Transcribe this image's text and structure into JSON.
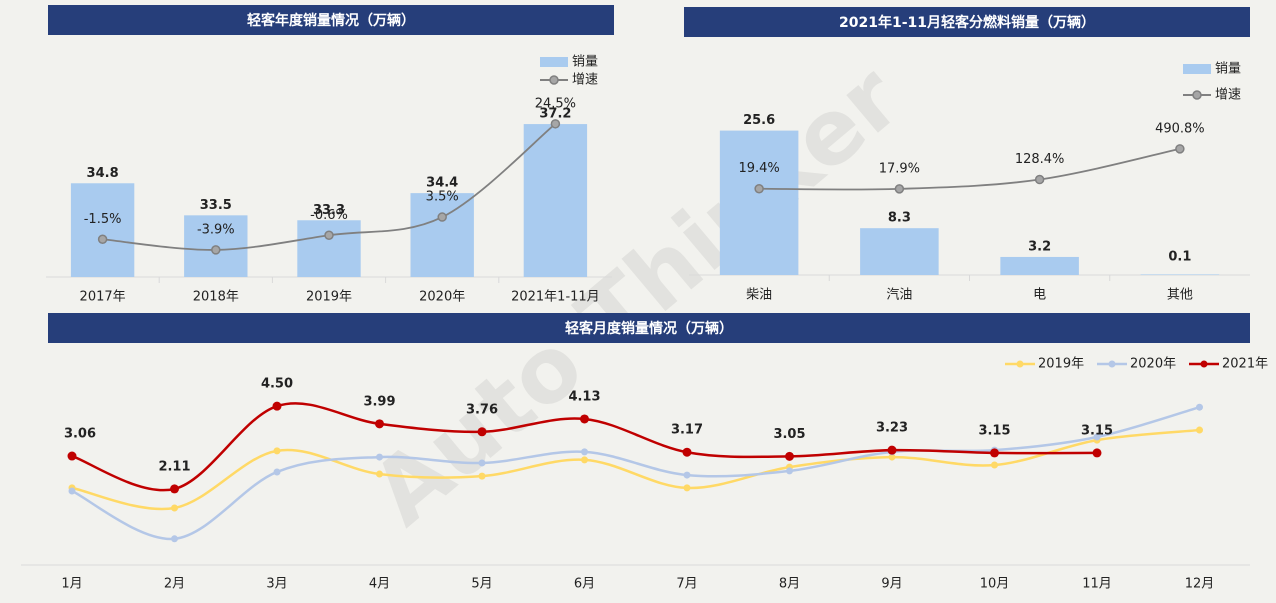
{
  "watermark": "Auto Thinker",
  "chart_data": [
    {
      "type": "bar",
      "title": "轻客年度销量情况（万辆）",
      "categories": [
        "2017年",
        "2018年",
        "2019年",
        "2020年",
        "2021年1-11月"
      ],
      "series": [
        {
          "name": "销量",
          "type": "bar",
          "color": "#a9cbef",
          "values": [
            34.8,
            33.5,
            33.3,
            34.4,
            37.2
          ]
        },
        {
          "name": "增速",
          "type": "line",
          "axis": "y2",
          "color": "#808080",
          "values": [
            -1.5,
            -3.9,
            -0.6,
            3.5,
            24.5
          ],
          "value_labels": [
            "-1.5%",
            "-3.9%",
            "-0.6%",
            "3.5%",
            "24.5%"
          ]
        }
      ],
      "ylim": [
        31,
        40
      ],
      "y2lim": [
        -10,
        40
      ],
      "legend": "upper right"
    },
    {
      "type": "bar",
      "title": "2021年1-11月轻客分燃料销量（万辆）",
      "categories": [
        "柴油",
        "汽油",
        "电",
        "其他"
      ],
      "series": [
        {
          "name": "销量",
          "type": "bar",
          "color": "#a9cbef",
          "values": [
            25.6,
            8.3,
            3.2,
            0.1
          ]
        },
        {
          "name": "增速",
          "type": "line",
          "axis": "y2",
          "color": "#808080",
          "values": [
            19.4,
            17.9,
            128.4,
            490.8
          ],
          "value_labels": [
            "19.4%",
            "17.9%",
            "128.4%",
            "490.8%"
          ]
        }
      ],
      "ylim": [
        0,
        39
      ],
      "y2lim": [
        -1000,
        1600
      ],
      "legend": "upper right"
    },
    {
      "type": "line",
      "title": "轻客月度销量情况（万辆）",
      "categories": [
        "1月",
        "2月",
        "3月",
        "4月",
        "5月",
        "6月",
        "7月",
        "8月",
        "9月",
        "10月",
        "11月",
        "12月"
      ],
      "series": [
        {
          "name": "2019年",
          "color": "#ffd966",
          "values": [
            2.14,
            1.56,
            3.21,
            2.54,
            2.48,
            2.95,
            2.14,
            2.74,
            3.03,
            2.8,
            3.52,
            3.81
          ]
        },
        {
          "name": "2020年",
          "color": "#b4c7e7",
          "values": [
            2.05,
            0.67,
            2.6,
            3.03,
            2.86,
            3.18,
            2.51,
            2.63,
            3.18,
            3.23,
            3.61,
            4.47
          ]
        },
        {
          "name": "2021年",
          "color": "#c00000",
          "values": [
            3.06,
            2.11,
            4.5,
            3.99,
            3.76,
            4.13,
            3.17,
            3.05,
            3.23,
            3.15,
            3.15,
            null
          ],
          "value_labels": [
            "3.06",
            "2.11",
            "4.50",
            "3.99",
            "3.76",
            "4.13",
            "3.17",
            "3.05",
            "3.23",
            "3.15",
            "3.15",
            null
          ]
        }
      ],
      "ylim": [
        0,
        5.4
      ],
      "legend": "upper right"
    }
  ]
}
